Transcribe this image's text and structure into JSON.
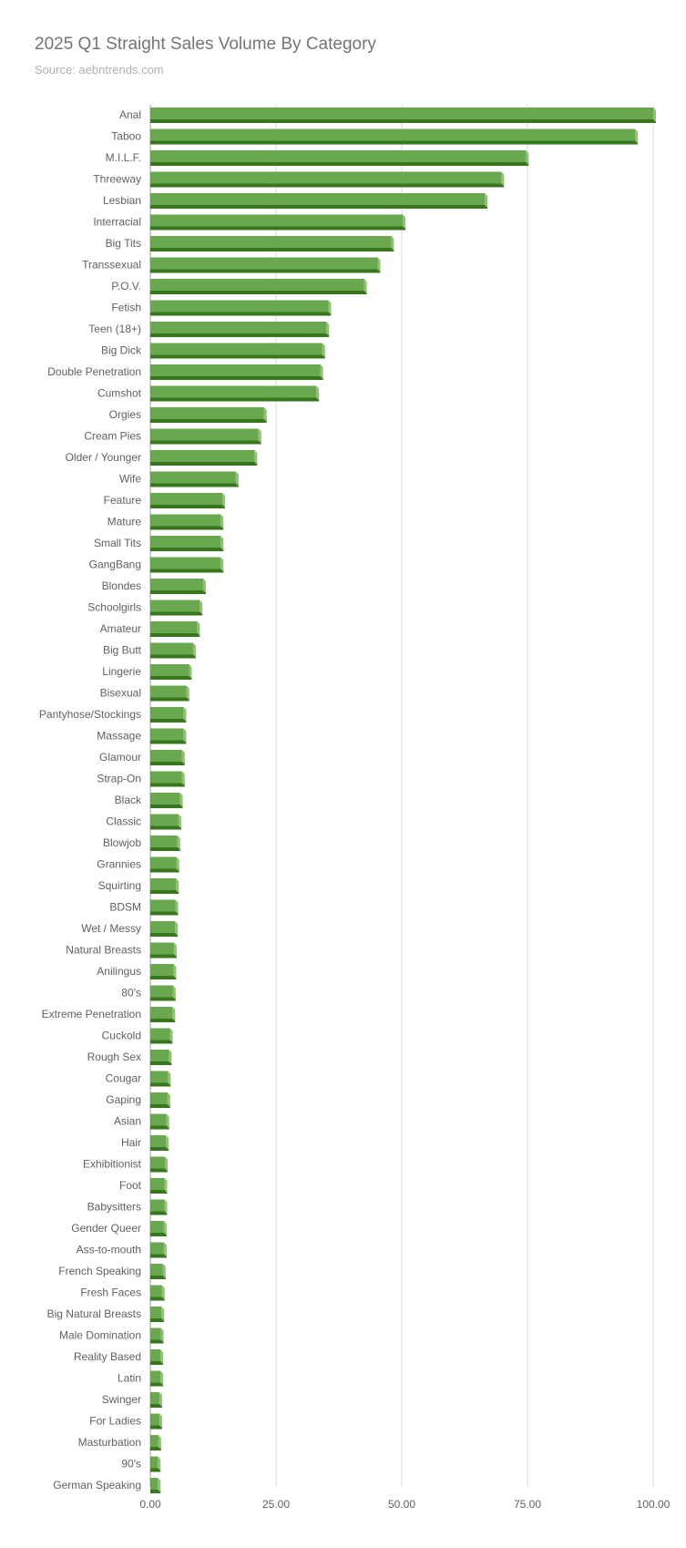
{
  "chart_data": {
    "type": "bar",
    "orientation": "horizontal",
    "title": "2025 Q1 Straight Sales Volume By Category",
    "subtitle": "Source: aebntrends.com",
    "xlabel": "",
    "ylabel": "",
    "xlim": [
      0,
      100
    ],
    "x_ticks": [
      "0.00",
      "25.00",
      "50.00",
      "75.00",
      "100.00"
    ],
    "x_tick_values": [
      0,
      25,
      50,
      75,
      100
    ],
    "grid": true,
    "legend": "none",
    "bar_color": "#6aa84f",
    "bar_shadow_color": "#38761d",
    "categories": [
      "Anal",
      "Taboo",
      "M.I.L.F.",
      "Threeway",
      "Lesbian",
      "Interracial",
      "Big Tits",
      "Transsexual",
      "P.O.V.",
      "Fetish",
      "Teen (18+)",
      "Big Dick",
      "Double Penetration",
      "Cumshot",
      "Orgies",
      "Cream Pies",
      "Older / Younger",
      "Wife",
      "Feature",
      "Mature",
      "Small Tits",
      "GangBang",
      "Blondes",
      "Schoolgirls",
      "Amateur",
      "Big Butt",
      "Lingerie",
      "Bisexual",
      "Pantyhose/Stockings",
      "Massage",
      "Glamour",
      "Strap-On",
      "Black",
      "Classic",
      "Blowjob",
      "Grannies",
      "Squirting",
      "BDSM",
      "Wet / Messy",
      "Natural Breasts",
      "Anilingus",
      "80's",
      "Extreme Penetration",
      "Cuckold",
      "Rough Sex",
      "Cougar",
      "Gaping",
      "Asian",
      "Hair",
      "Exhibitionist",
      "Foot",
      "Babysitters",
      "Gender Queer",
      "Ass-to-mouth",
      "French Speaking",
      "Fresh Faces",
      "Big Natural Breasts",
      "Male Domination",
      "Reality Based",
      "Latin",
      "Swinger",
      "For Ladies",
      "Masturbation",
      "90's",
      "German Speaking"
    ],
    "values": [
      100,
      96.4,
      74.7,
      69.8,
      66.5,
      50.2,
      47.9,
      45.2,
      42.5,
      35.4,
      35.0,
      34.2,
      33.8,
      33.0,
      22.6,
      21.5,
      20.7,
      17.0,
      14.3,
      14.0,
      14.0,
      14.0,
      10.5,
      9.8,
      9.3,
      8.5,
      7.7,
      7.2,
      6.6,
      6.6,
      6.3,
      6.3,
      5.9,
      5.6,
      5.4,
      5.2,
      5.1,
      5.0,
      4.9,
      4.7,
      4.6,
      4.5,
      4.4,
      3.9,
      3.7,
      3.5,
      3.4,
      3.2,
      3.1,
      2.9,
      2.8,
      2.8,
      2.7,
      2.7,
      2.5,
      2.3,
      2.2,
      2.1,
      2.0,
      2.0,
      1.8,
      1.8,
      1.6,
      1.5,
      1.5
    ]
  }
}
